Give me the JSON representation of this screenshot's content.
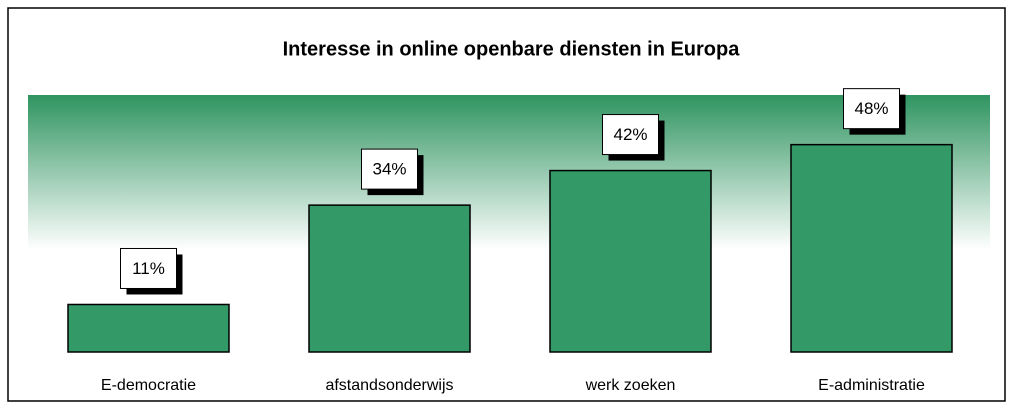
{
  "chart_data": {
    "type": "bar",
    "title": "Interesse in online openbare diensten in Europa",
    "categories": [
      "E-democratie",
      "afstandsonderwijs",
      "werk zoeken",
      "E-administratie"
    ],
    "values": [
      11,
      34,
      42,
      48
    ],
    "value_labels": [
      "11%",
      "34%",
      "42%",
      "48%"
    ],
    "color": "#339966"
  }
}
